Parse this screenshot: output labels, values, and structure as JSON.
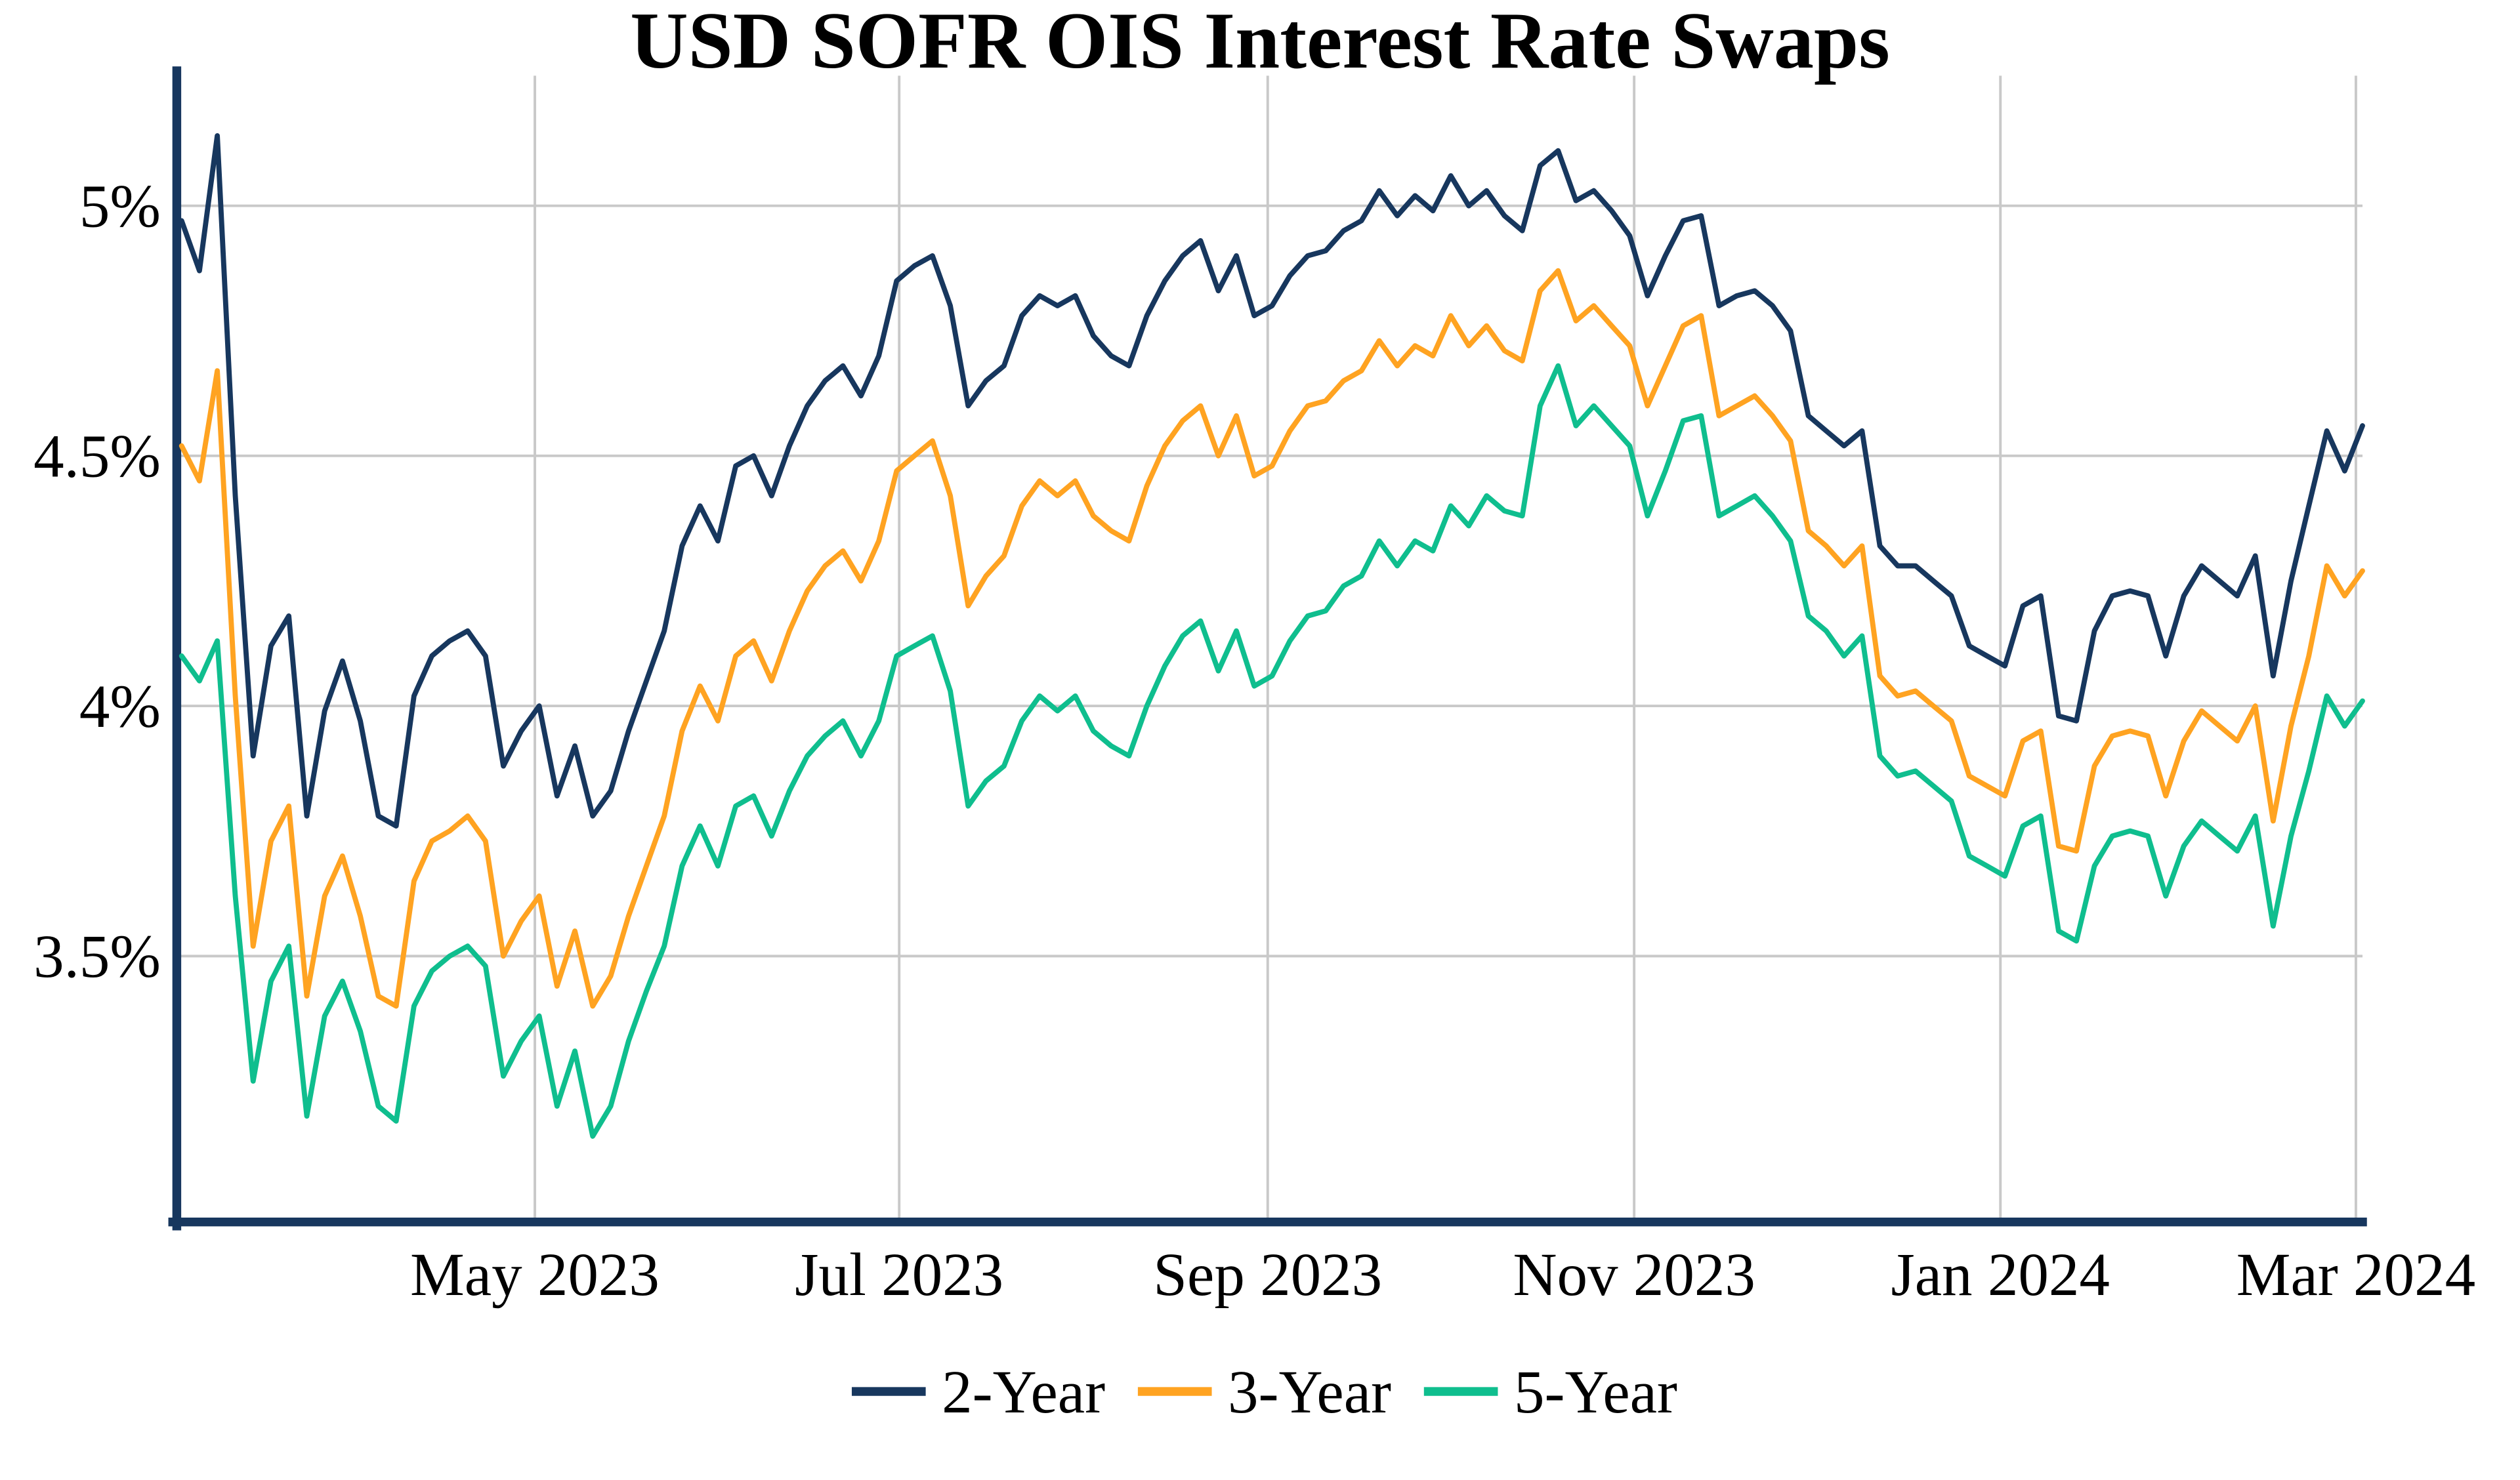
{
  "chart_data": {
    "type": "line",
    "title": "USD SOFR OIS Interest Rate Swaps",
    "xlabel": "",
    "ylabel": "",
    "x_range": [
      "Mar 2023",
      "Mar 2024"
    ],
    "ylim": [
      2.97,
      5.26
    ],
    "grid": true,
    "legend_position": "bottom",
    "axis_color": "#17375E",
    "grid_color": "#c9c9c9",
    "y_ticks": [
      {
        "label": "5%",
        "value": 5.0
      },
      {
        "label": "4.5%",
        "value": 4.5
      },
      {
        "label": "4%",
        "value": 4.0
      },
      {
        "label": "3.5%",
        "value": 3.5
      }
    ],
    "x_ticks": [
      {
        "label": "May 2023",
        "position": 0.162
      },
      {
        "label": "Jul 2023",
        "position": 0.329
      },
      {
        "label": "Sep 2023",
        "position": 0.498
      },
      {
        "label": "Nov 2023",
        "position": 0.666
      },
      {
        "label": "Jan 2024",
        "position": 0.834
      },
      {
        "label": "Mar 2024",
        "position": 0.997
      }
    ],
    "series": [
      {
        "name": "2-Year",
        "color": "#17375E",
        "values": [
          4.97,
          4.87,
          5.14,
          4.42,
          3.9,
          4.12,
          4.18,
          3.78,
          3.99,
          4.09,
          3.97,
          3.78,
          3.76,
          4.02,
          4.1,
          4.13,
          4.15,
          4.1,
          3.88,
          3.95,
          4.0,
          3.82,
          3.92,
          3.78,
          3.83,
          3.95,
          4.05,
          4.15,
          4.32,
          4.4,
          4.33,
          4.48,
          4.5,
          4.42,
          4.52,
          4.6,
          4.65,
          4.68,
          4.62,
          4.7,
          4.85,
          4.88,
          4.9,
          4.8,
          4.6,
          4.65,
          4.68,
          4.78,
          4.82,
          4.8,
          4.82,
          4.74,
          4.7,
          4.68,
          4.78,
          4.85,
          4.9,
          4.93,
          4.83,
          4.9,
          4.78,
          4.8,
          4.86,
          4.9,
          4.91,
          4.95,
          4.97,
          5.03,
          4.98,
          5.02,
          4.99,
          5.06,
          5.0,
          5.03,
          4.98,
          4.95,
          5.08,
          5.11,
          5.01,
          5.03,
          4.99,
          4.94,
          4.82,
          4.9,
          4.97,
          4.98,
          4.8,
          4.82,
          4.83,
          4.8,
          4.75,
          4.58,
          4.55,
          4.52,
          4.55,
          4.32,
          4.28,
          4.28,
          4.25,
          4.22,
          4.12,
          4.1,
          4.08,
          4.2,
          4.22,
          3.98,
          3.97,
          4.15,
          4.22,
          4.23,
          4.22,
          4.1,
          4.22,
          4.28,
          4.25,
          4.22,
          4.3,
          4.06,
          4.25,
          4.4,
          4.55,
          4.47,
          4.56
        ]
      },
      {
        "name": "3-Year",
        "color": "#FFA321",
        "values": [
          4.52,
          4.45,
          4.67,
          4.02,
          3.52,
          3.73,
          3.8,
          3.42,
          3.62,
          3.7,
          3.58,
          3.42,
          3.4,
          3.65,
          3.73,
          3.75,
          3.78,
          3.73,
          3.5,
          3.57,
          3.62,
          3.44,
          3.55,
          3.4,
          3.46,
          3.58,
          3.68,
          3.78,
          3.95,
          4.04,
          3.97,
          4.1,
          4.13,
          4.05,
          4.15,
          4.23,
          4.28,
          4.31,
          4.25,
          4.33,
          4.47,
          4.5,
          4.53,
          4.42,
          4.2,
          4.26,
          4.3,
          4.4,
          4.45,
          4.42,
          4.45,
          4.38,
          4.35,
          4.33,
          4.44,
          4.52,
          4.57,
          4.6,
          4.5,
          4.58,
          4.46,
          4.48,
          4.55,
          4.6,
          4.61,
          4.65,
          4.67,
          4.73,
          4.68,
          4.72,
          4.7,
          4.78,
          4.72,
          4.76,
          4.71,
          4.69,
          4.83,
          4.87,
          4.77,
          4.8,
          4.76,
          4.72,
          4.6,
          4.68,
          4.76,
          4.78,
          4.58,
          4.6,
          4.62,
          4.58,
          4.53,
          4.35,
          4.32,
          4.28,
          4.32,
          4.06,
          4.02,
          4.03,
          4.0,
          3.97,
          3.86,
          3.84,
          3.82,
          3.93,
          3.95,
          3.72,
          3.71,
          3.88,
          3.94,
          3.95,
          3.94,
          3.82,
          3.93,
          3.99,
          3.96,
          3.93,
          4.0,
          3.77,
          3.96,
          4.1,
          4.28,
          4.22,
          4.27
        ]
      },
      {
        "name": "5-Year",
        "color": "#0FBE8E",
        "values": [
          4.1,
          4.05,
          4.13,
          3.62,
          3.25,
          3.45,
          3.52,
          3.18,
          3.38,
          3.45,
          3.35,
          3.2,
          3.17,
          3.4,
          3.47,
          3.5,
          3.52,
          3.48,
          3.26,
          3.33,
          3.38,
          3.2,
          3.31,
          3.14,
          3.2,
          3.33,
          3.43,
          3.52,
          3.68,
          3.76,
          3.68,
          3.8,
          3.82,
          3.74,
          3.83,
          3.9,
          3.94,
          3.97,
          3.9,
          3.97,
          4.1,
          4.12,
          4.14,
          4.03,
          3.8,
          3.85,
          3.88,
          3.97,
          4.02,
          3.99,
          4.02,
          3.95,
          3.92,
          3.9,
          4.0,
          4.08,
          4.14,
          4.17,
          4.07,
          4.15,
          4.04,
          4.06,
          4.13,
          4.18,
          4.19,
          4.24,
          4.26,
          4.33,
          4.28,
          4.33,
          4.31,
          4.4,
          4.36,
          4.42,
          4.39,
          4.38,
          4.6,
          4.68,
          4.56,
          4.6,
          4.56,
          4.52,
          4.38,
          4.47,
          4.57,
          4.58,
          4.38,
          4.4,
          4.42,
          4.38,
          4.33,
          4.18,
          4.15,
          4.1,
          4.14,
          3.9,
          3.86,
          3.87,
          3.84,
          3.81,
          3.7,
          3.68,
          3.66,
          3.76,
          3.78,
          3.55,
          3.53,
          3.68,
          3.74,
          3.75,
          3.74,
          3.62,
          3.72,
          3.77,
          3.74,
          3.71,
          3.78,
          3.56,
          3.74,
          3.87,
          4.02,
          3.96,
          4.01
        ]
      }
    ]
  }
}
